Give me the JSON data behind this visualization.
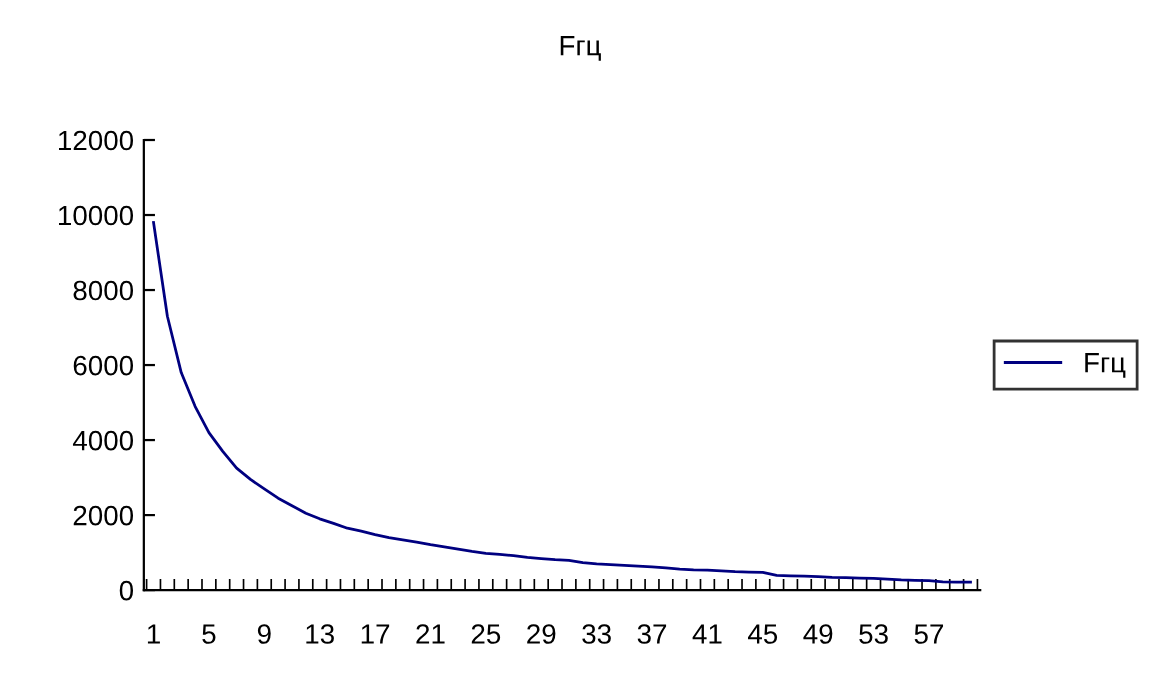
{
  "chart_data": {
    "type": "line",
    "title": "Fгц",
    "categories": [
      "1",
      null,
      null,
      null,
      "5",
      null,
      null,
      null,
      "9",
      null,
      null,
      null,
      "13",
      null,
      null,
      null,
      "17",
      null,
      null,
      null,
      "21",
      null,
      null,
      null,
      "25",
      null,
      null,
      null,
      "29",
      null,
      null,
      null,
      "33",
      null,
      null,
      null,
      "37",
      null,
      null,
      null,
      "41",
      null,
      null,
      null,
      "45",
      null,
      null,
      null,
      "49",
      null,
      null,
      null,
      "53",
      null,
      null,
      null,
      "57",
      null,
      null,
      null
    ],
    "series": [
      {
        "name": "Fгц",
        "color": "#000080",
        "values": [
          9800,
          7300,
          5800,
          4900,
          4200,
          3700,
          3250,
          2950,
          2700,
          2450,
          2250,
          2050,
          1900,
          1780,
          1650,
          1570,
          1480,
          1400,
          1340,
          1280,
          1210,
          1150,
          1090,
          1030,
          980,
          950,
          920,
          870,
          840,
          810,
          790,
          730,
          700,
          680,
          660,
          640,
          620,
          590,
          560,
          540,
          530,
          510,
          490,
          480,
          470,
          390,
          380,
          370,
          360,
          340,
          330,
          320,
          310,
          290,
          270,
          260,
          250,
          220,
          210,
          210
        ]
      }
    ],
    "ylim": [
      0,
      12000
    ],
    "yticks": [
      0,
      2000,
      4000,
      6000,
      8000,
      10000,
      12000
    ],
    "legend": "right",
    "grid": false,
    "marker": "none",
    "line_style": "solid"
  }
}
